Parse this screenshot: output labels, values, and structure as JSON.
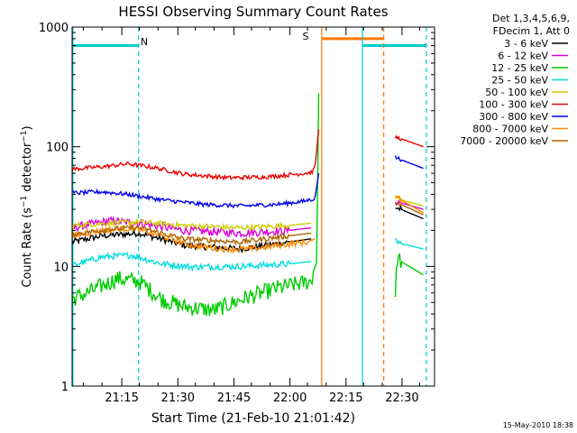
{
  "chart_data": {
    "type": "line",
    "title": "HESSI Observing Summary Count Rates",
    "xlabel": "Start Time (21-Feb-10 21:01:42)",
    "ylabel_main": "Count Rate (s",
    "ylabel_sup1": "−1",
    "ylabel_mid": " detector",
    "ylabel_sup2": "−1",
    "ylabel_end": ")",
    "yscale": "log",
    "ylim": [
      1,
      1000
    ],
    "xlim_minutes": [
      0,
      97
    ],
    "x_ticks": [
      {
        "label": "21:15",
        "minutes": 13.3
      },
      {
        "label": "21:30",
        "minutes": 28.3
      },
      {
        "label": "21:45",
        "minutes": 43.3
      },
      {
        "label": "22:00",
        "minutes": 58.3
      },
      {
        "label": "22:15",
        "minutes": 73.3
      },
      {
        "label": "22:30",
        "minutes": 88.3
      }
    ],
    "y_ticks": [
      {
        "label": "1",
        "value": 1
      },
      {
        "label": "10",
        "value": 10
      },
      {
        "label": "100",
        "value": 100
      },
      {
        "label": "1000",
        "value": 1000
      }
    ],
    "legend_header": [
      "Det 1,3,4,5,6,9,",
      "FDecim 1, Att 0"
    ],
    "series": [
      {
        "name": "3 - 6 keV",
        "color": "#000000",
        "segments": [
          [
            [
              0,
              16
            ],
            [
              8,
              18
            ],
            [
              18,
              19
            ],
            [
              30,
              15
            ],
            [
              45,
              14
            ],
            [
              58,
              16
            ],
            [
              64,
              17
            ]
          ],
          [
            [
              86.5,
              31
            ],
            [
              88,
              30
            ],
            [
              94,
              25
            ]
          ]
        ]
      },
      {
        "name": "6 - 12 keV",
        "color": "#dd00dd",
        "segments": [
          [
            [
              0,
              21
            ],
            [
              10,
              24
            ],
            [
              18,
              23
            ],
            [
              30,
              20
            ],
            [
              45,
              19
            ],
            [
              58,
              20
            ],
            [
              64,
              21
            ]
          ],
          [
            [
              86.5,
              35
            ],
            [
              88,
              34
            ],
            [
              94,
              30
            ]
          ]
        ]
      },
      {
        "name": "12 - 25 keV",
        "color": "#00cc00",
        "segments": [
          [
            [
              0,
              5.3
            ],
            [
              6,
              6.4
            ],
            [
              12,
              7.9
            ],
            [
              18,
              7.5
            ],
            [
              24,
              5.3
            ],
            [
              30,
              4.6
            ],
            [
              38,
              4.3
            ],
            [
              46,
              5.4
            ],
            [
              55,
              6.6
            ],
            [
              64,
              7.5
            ],
            [
              65.5,
              12
            ],
            [
              66,
              280
            ]
          ],
          [
            [
              86.5,
              5.5
            ],
            [
              87,
              12
            ],
            [
              88,
              11
            ],
            [
              94,
              8.5
            ]
          ]
        ]
      },
      {
        "name": "25 - 50 keV",
        "color": "#00dddd",
        "segments": [
          [
            [
              0,
              10.2
            ],
            [
              8,
              12
            ],
            [
              16,
              12.4
            ],
            [
              24,
              10.5
            ],
            [
              32,
              9.9
            ],
            [
              45,
              10
            ],
            [
              58,
              10.5
            ],
            [
              64,
              11
            ]
          ],
          [
            [
              86.5,
              16.5
            ],
            [
              88,
              15.5
            ],
            [
              94,
              14
            ]
          ]
        ]
      },
      {
        "name": "50 - 100 keV",
        "color": "#cccc00",
        "segments": [
          [
            [
              0,
              22
            ],
            [
              10,
              23
            ],
            [
              18,
              23.5
            ],
            [
              30,
              22
            ],
            [
              45,
              21
            ],
            [
              58,
              22
            ],
            [
              64,
              23
            ]
          ],
          [
            [
              86.5,
              38
            ],
            [
              88,
              36
            ],
            [
              94,
              32
            ]
          ]
        ]
      },
      {
        "name": "100 - 300 keV",
        "color": "#ee0000",
        "segments": [
          [
            [
              0,
              65
            ],
            [
              8,
              68
            ],
            [
              15,
              72
            ],
            [
              22,
              67
            ],
            [
              30,
              59
            ],
            [
              42,
              55
            ],
            [
              52,
              56
            ],
            [
              60,
              59
            ],
            [
              64,
              61
            ],
            [
              65,
              66
            ],
            [
              66,
              140
            ]
          ],
          [
            [
              86.5,
              120
            ],
            [
              88,
              117
            ],
            [
              94,
              100
            ]
          ]
        ]
      },
      {
        "name": "300 - 800 keV",
        "color": "#0000ee",
        "segments": [
          [
            [
              0,
              41
            ],
            [
              8,
              42
            ],
            [
              15,
              40
            ],
            [
              24,
              36
            ],
            [
              35,
              33
            ],
            [
              45,
              32
            ],
            [
              55,
              33
            ],
            [
              62,
              35
            ],
            [
              65,
              37
            ],
            [
              66,
              60
            ]
          ],
          [
            [
              86.5,
              82
            ],
            [
              88,
              78
            ],
            [
              94,
              66
            ]
          ]
        ]
      },
      {
        "name": "800 - 7000 keV",
        "color": "#ff8800",
        "segments": [
          [
            [
              0,
              18
            ],
            [
              8,
              20
            ],
            [
              16,
              21
            ],
            [
              24,
              18
            ],
            [
              32,
              15
            ],
            [
              40,
              14
            ],
            [
              48,
              14
            ],
            [
              55,
              15
            ],
            [
              63,
              16
            ],
            [
              65,
              17
            ]
          ],
          [
            [
              86.5,
              38
            ],
            [
              88,
              36
            ],
            [
              94,
              28
            ]
          ]
        ]
      },
      {
        "name": "7000 - 20000 keV",
        "color": "#aa6600",
        "segments": [
          [
            [
              0,
              18.5
            ],
            [
              10,
              20.5
            ],
            [
              18,
              21
            ],
            [
              30,
              17
            ],
            [
              45,
              16
            ],
            [
              58,
              18
            ],
            [
              64,
              19
            ]
          ],
          [
            [
              86.5,
              34
            ],
            [
              88,
              33
            ],
            [
              94,
              27
            ]
          ]
        ]
      }
    ],
    "annotations": [
      {
        "label": "N",
        "color": "#00cccc"
      },
      {
        "label": "S",
        "color": "#ff7700"
      }
    ],
    "overlays": [
      {
        "kind": "segment",
        "color": "#00cccc",
        "x": [
          0,
          17.8
        ],
        "y": 700,
        "width": 3
      },
      {
        "kind": "segment",
        "color": "#00cccc",
        "x": [
          77.7,
          94.8
        ],
        "y": 700,
        "width": 3
      },
      {
        "kind": "segment",
        "color": "#ff7700",
        "x": [
          66.8,
          83.4
        ],
        "y": 800,
        "width": 3
      },
      {
        "kind": "vline",
        "color": "#00cccc",
        "x": 0.2,
        "style": "solid"
      },
      {
        "kind": "vline",
        "color": "#00cccc",
        "x": 17.8,
        "style": "dashed"
      },
      {
        "kind": "vline",
        "color": "#ff7700",
        "x": 66.8,
        "style": "solid"
      },
      {
        "kind": "vline",
        "color": "#00cccc",
        "x": 77.7,
        "style": "solid"
      },
      {
        "kind": "vline",
        "color": "#ff7700",
        "x": 83.4,
        "style": "dashed"
      },
      {
        "kind": "vline",
        "color": "#00cccc",
        "x": 94.8,
        "style": "dashed"
      }
    ]
  },
  "footer": {
    "date_stamp": "15-May-2010 18:38"
  }
}
